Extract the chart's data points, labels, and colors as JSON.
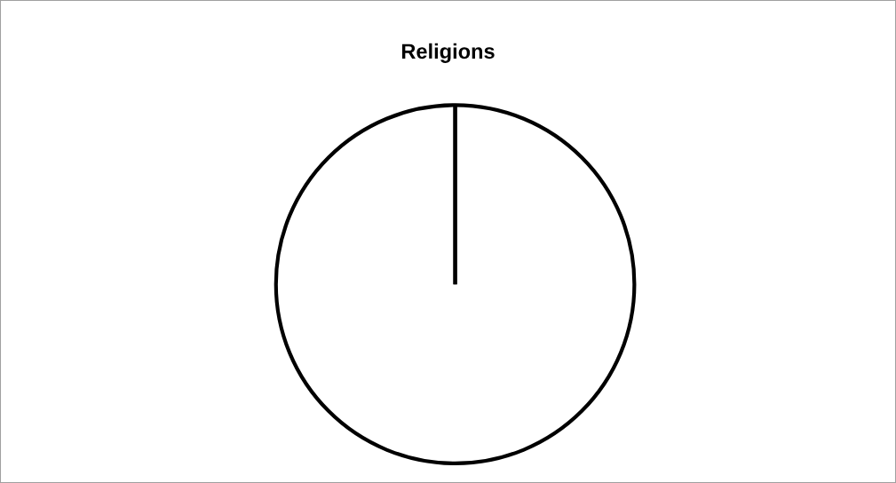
{
  "chart_data": {
    "type": "pie",
    "title": "Religions",
    "categories": [
      null
    ],
    "values": [
      100
    ],
    "colors": [
      "#ffffff"
    ],
    "legend": false
  }
}
